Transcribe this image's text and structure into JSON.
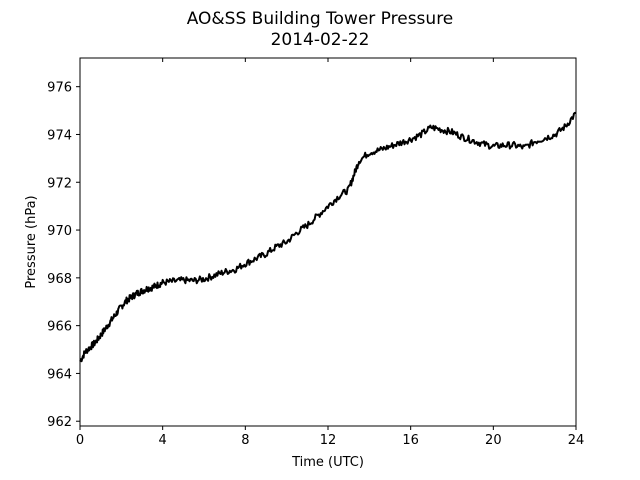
{
  "chart_data": {
    "type": "line",
    "title": "AO&SS Building Tower Pressure",
    "subtitle": "2014-02-22",
    "xlabel": "Time (UTC)",
    "ylabel": "Pressure (hPa)",
    "xlim": [
      0,
      24
    ],
    "ylim": [
      961.8,
      977.2
    ],
    "xticks": [
      0,
      4,
      8,
      12,
      16,
      20,
      24
    ],
    "yticks": [
      962,
      964,
      966,
      968,
      970,
      972,
      974,
      976
    ],
    "grid": false,
    "line_color": "#000000",
    "series": [
      {
        "x": [
          0,
          0.25,
          0.5,
          0.75,
          1,
          1.25,
          1.5,
          1.75,
          2,
          2.25,
          2.5,
          2.75,
          3,
          3.25,
          3.5,
          3.75,
          4,
          4.5,
          5,
          5.5,
          6,
          6.5,
          7,
          7.5,
          8,
          8.5,
          9,
          9.5,
          10,
          10.5,
          11,
          11.5,
          12,
          12.5,
          13,
          13.25,
          13.5,
          14,
          14.5,
          15,
          15.5,
          16,
          16.5,
          17,
          17.5,
          18,
          18.5,
          19,
          19.5,
          20,
          20.5,
          21,
          21.5,
          22,
          22.5,
          23,
          23.5,
          24
        ],
        "values": [
          964.5,
          964.9,
          965.1,
          965.3,
          965.6,
          965.9,
          966.2,
          966.5,
          966.8,
          967.05,
          967.2,
          967.35,
          967.45,
          967.55,
          967.6,
          967.7,
          967.8,
          967.85,
          967.9,
          967.88,
          967.95,
          968.1,
          968.25,
          968.35,
          968.6,
          968.8,
          969.0,
          969.3,
          969.5,
          969.9,
          970.2,
          970.6,
          971.0,
          971.4,
          971.7,
          972.3,
          972.9,
          973.25,
          973.35,
          973.5,
          973.65,
          973.8,
          974.0,
          974.3,
          974.2,
          974.1,
          973.9,
          973.75,
          973.6,
          973.5,
          973.55,
          973.55,
          973.45,
          973.7,
          973.85,
          974.0,
          974.35,
          974.9
        ]
      }
    ]
  }
}
